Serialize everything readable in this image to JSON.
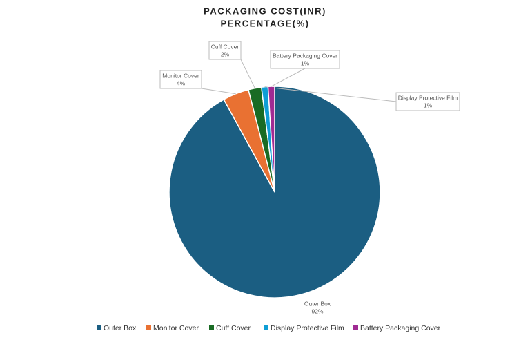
{
  "chart_data": {
    "type": "pie",
    "title": [
      "PACKAGING COST(INR)",
      "PERCENTAGE(%)"
    ],
    "categories": [
      "Outer Box",
      "Monitor Cover",
      "Cuff Cover",
      "Display Protective Film",
      "Battery Packaging Cover"
    ],
    "values": [
      92,
      4,
      2,
      1,
      1
    ],
    "value_labels": [
      "92%",
      "4%",
      "2%",
      "1%",
      "1%"
    ],
    "colors": [
      "#1b5e82",
      "#e97132",
      "#196b24",
      "#0f9ed5",
      "#a02b93"
    ],
    "legend": "bottom"
  }
}
